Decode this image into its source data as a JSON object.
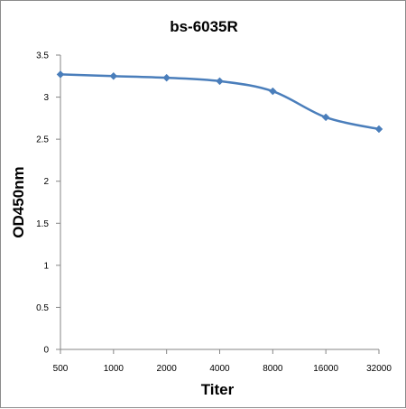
{
  "chart_data": {
    "type": "line",
    "title": "bs-6035R",
    "xlabel": "Titer",
    "ylabel": "OD450nm",
    "categories": [
      "500",
      "1000",
      "2000",
      "4000",
      "8000",
      "16000",
      "32000"
    ],
    "series": [
      {
        "values": [
          3.27,
          3.25,
          3.23,
          3.19,
          3.07,
          2.76,
          2.62
        ],
        "color": "#4a7ebb"
      }
    ],
    "ylim": [
      0,
      3.5
    ],
    "yticks": [
      "0",
      "0.5",
      "1",
      "1.5",
      "2",
      "2.5",
      "3",
      "3.5"
    ],
    "grid": false,
    "legend": "none"
  }
}
